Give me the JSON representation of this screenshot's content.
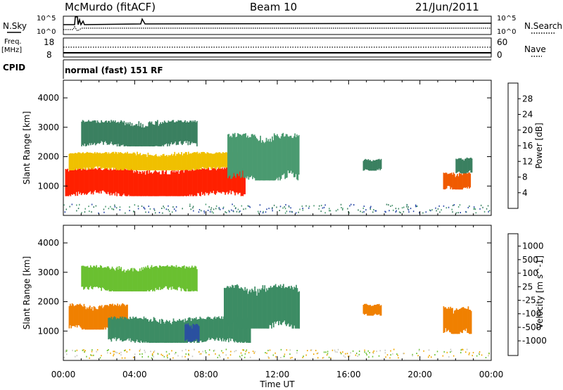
{
  "header": {
    "station": "McMurdo (fitACF)",
    "beam": "Beam 10",
    "date": "21/Jun/2011"
  },
  "top_panels": {
    "nsky_label": "N.Sky",
    "nsearch_label": "N.Search",
    "noise_ticks": [
      "10^5",
      "10^0"
    ],
    "freq_label": "Freq.",
    "freq_unit": "[MHz]",
    "freq_ticks": [
      "18",
      "8"
    ],
    "nave_label": "Nave",
    "nave_ticks": [
      "60",
      "0"
    ],
    "cpid_label": "CPID",
    "cpid_text": "normal (fast) 151 RF"
  },
  "colors": {
    "power": [
      "#1e2cf0",
      "#2a4aa8",
      "#3a8060",
      "#4a9a70",
      "#9acd32",
      "#f0c000",
      "#f08000",
      "#f05a00",
      "#ff2000"
    ],
    "velocity": [
      "#ff1010",
      "#f05a00",
      "#f08000",
      "#f0a800",
      "#c8c8c0",
      "#6ac030",
      "#3c8c64",
      "#2a50a0",
      "#1e30d0"
    ]
  },
  "chart_data": [
    {
      "type": "heatmap",
      "panel": "power",
      "ylabel": "Slant Range [km]",
      "xlabel": "",
      "x_ticks": [
        "00:00",
        "04:00",
        "08:00",
        "12:00",
        "16:00",
        "20:00",
        "00:00"
      ],
      "xlim_hours": [
        0,
        24
      ],
      "y_ticks": [
        1000,
        2000,
        3000,
        4000
      ],
      "ylim": [
        0,
        4600
      ],
      "colorbar": {
        "label": "Power [dB]",
        "ticks": [
          4,
          8,
          12,
          16,
          20,
          24,
          28
        ],
        "range": [
          0,
          32
        ]
      },
      "regions": [
        {
          "t0": 0.1,
          "t1": 10.2,
          "r0": 600,
          "r1": 1700,
          "value": 29
        },
        {
          "t0": 0.3,
          "t1": 9.8,
          "r0": 1500,
          "r1": 2200,
          "value": 18
        },
        {
          "t0": 1.0,
          "t1": 7.5,
          "r0": 2300,
          "r1": 3300,
          "value": 10
        },
        {
          "t0": 9.2,
          "t1": 13.2,
          "r0": 1100,
          "r1": 2900,
          "value": 11
        },
        {
          "t0": 16.8,
          "t1": 17.8,
          "r0": 1500,
          "r1": 1950,
          "value": 9
        },
        {
          "t0": 21.3,
          "t1": 22.8,
          "r0": 850,
          "r1": 1500,
          "value": 28
        },
        {
          "t0": 22.0,
          "t1": 22.9,
          "r0": 1400,
          "r1": 2000,
          "value": 10
        }
      ]
    },
    {
      "type": "heatmap",
      "panel": "velocity",
      "ylabel": "Slant Range [km]",
      "xlabel": "Time UT",
      "x_ticks": [
        "00:00",
        "04:00",
        "08:00",
        "12:00",
        "16:00",
        "20:00",
        "00:00"
      ],
      "xlim_hours": [
        0,
        24
      ],
      "y_ticks": [
        1000,
        2000,
        3000,
        4000
      ],
      "ylim": [
        0,
        4600
      ],
      "colorbar": {
        "label": "Velocity [m s^-1]",
        "ticks": [
          1000,
          500,
          100,
          25,
          -25,
          -100,
          -500,
          -1000
        ]
      },
      "regions": [
        {
          "t0": 0.3,
          "t1": 3.6,
          "r0": 1000,
          "r1": 2000,
          "value": -300
        },
        {
          "t0": 2.5,
          "t1": 10.5,
          "r0": 550,
          "r1": 1550,
          "value": 150
        },
        {
          "t0": 6.8,
          "t1": 7.6,
          "r0": 600,
          "r1": 1300,
          "value": 800
        },
        {
          "t0": 9.0,
          "t1": 13.2,
          "r0": 1000,
          "r1": 2700,
          "value": 150
        },
        {
          "t0": 1.0,
          "t1": 7.5,
          "r0": 2300,
          "r1": 3300,
          "value": 40
        },
        {
          "t0": 16.8,
          "t1": 17.8,
          "r0": 1500,
          "r1": 1950,
          "value": -300
        },
        {
          "t0": 21.3,
          "t1": 22.9,
          "r0": 850,
          "r1": 1900,
          "value": -300
        }
      ]
    }
  ]
}
